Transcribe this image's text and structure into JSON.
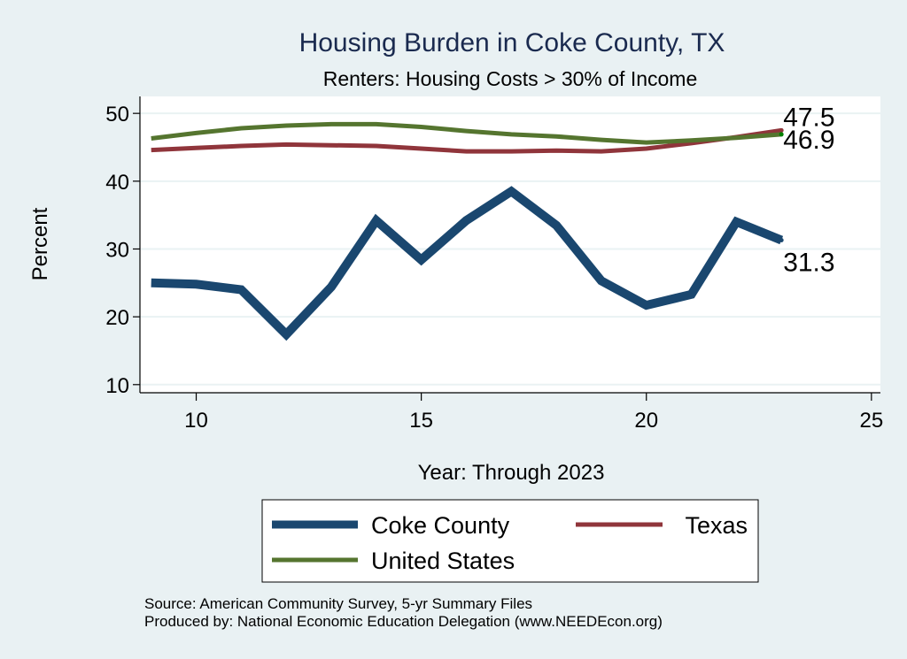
{
  "chart_data": {
    "type": "line",
    "title": "Housing Burden in Coke County, TX",
    "subtitle": "Renters: Housing Costs > 30% of Income",
    "xlabel": "Year: Through 2023",
    "ylabel": "Percent",
    "xlim": [
      8.75,
      25.2
    ],
    "ylim": [
      8.8,
      52.5
    ],
    "xticks": [
      10,
      15,
      20,
      25
    ],
    "yticks": [
      10,
      20,
      30,
      40,
      50
    ],
    "grid": true,
    "x": [
      9,
      10,
      11,
      12,
      13,
      14,
      15,
      16,
      17,
      18,
      19,
      20,
      21,
      22,
      23
    ],
    "series": [
      {
        "name": "Coke County",
        "color": "#1a476f",
        "values": [
          25.0,
          24.8,
          24.0,
          17.4,
          24.4,
          34.2,
          28.4,
          34.2,
          38.5,
          33.5,
          25.3,
          21.7,
          23.3,
          34.0,
          31.3
        ],
        "end_label": "31.3"
      },
      {
        "name": "Texas",
        "color": "#90353b",
        "values": [
          44.6,
          44.9,
          45.2,
          45.4,
          45.3,
          45.2,
          44.8,
          44.4,
          44.4,
          44.5,
          44.4,
          44.8,
          45.6,
          46.5,
          47.5
        ],
        "end_label": "47.5"
      },
      {
        "name": "United States",
        "color": "#55752f",
        "values": [
          46.3,
          47.1,
          47.8,
          48.2,
          48.4,
          48.4,
          48.0,
          47.4,
          46.9,
          46.6,
          46.1,
          45.7,
          46.0,
          46.4,
          46.9
        ],
        "end_label": "46.9"
      }
    ],
    "legend": {
      "placement": "bottom",
      "entries": [
        "Coke County",
        "Texas",
        "United States"
      ]
    },
    "notes": [
      "Source: American Community Survey, 5-yr Summary Files",
      "Produced by: National Economic Education Delegation (www.NEEDEcon.org)"
    ]
  }
}
